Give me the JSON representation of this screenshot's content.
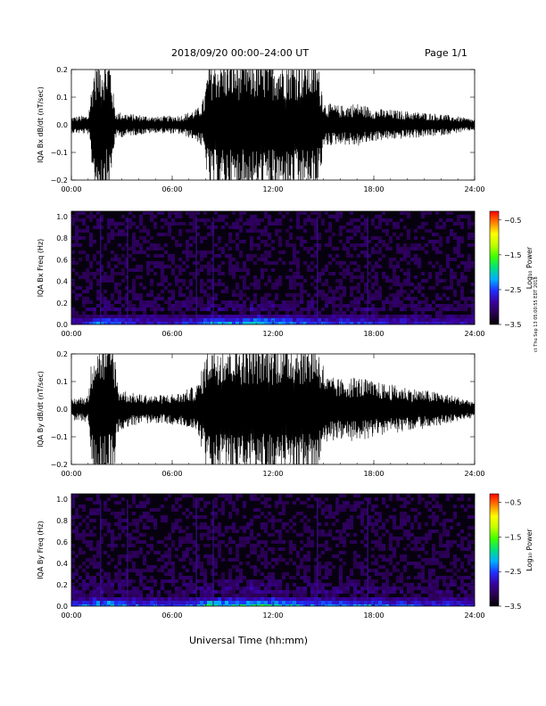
{
  "header": {
    "title": "2018/09/20  00:00–24:00 UT",
    "page": "Page 1/1"
  },
  "footer": {
    "xlabel": "Universal Time (hh:mm)"
  },
  "stamp": "ct Thu Sep 13 05:00:55 EDT 2018",
  "colors": {
    "background": "#ffffff",
    "trace": "#000000",
    "colormap": [
      "#000000",
      "#2a0050",
      "#3a00a0",
      "#2030ff",
      "#00b0ff",
      "#00e080",
      "#40ff00",
      "#c0ff00",
      "#ffff00",
      "#ff8000",
      "#ff0000"
    ]
  },
  "chart_data": [
    {
      "type": "line",
      "ylabel": "IQA Bx dB/dt (nT/sec)",
      "xticks": [
        "00:00",
        "06:00",
        "12:00",
        "18:00",
        "24:00"
      ],
      "yticks": [
        "−0.2",
        "−0.1",
        "0.0",
        "0.1",
        "0.2"
      ],
      "ylim": [
        -0.2,
        0.2
      ],
      "xlim_hours": [
        0,
        24
      ],
      "grid": false,
      "envelope": {
        "x_hours": [
          0,
          1,
          1.4,
          2.3,
          2.6,
          3.5,
          5,
          6.5,
          7.5,
          7.9,
          8.2,
          10,
          10.5,
          12.3,
          12.6,
          14.6,
          15.1,
          16,
          17,
          18,
          20,
          22,
          24
        ],
        "amplitude": [
          0.03,
          0.035,
          0.25,
          0.25,
          0.05,
          0.04,
          0.03,
          0.035,
          0.06,
          0.1,
          0.25,
          0.25,
          0.25,
          0.25,
          0.25,
          0.25,
          0.08,
          0.07,
          0.08,
          0.06,
          0.05,
          0.04,
          0.02
        ]
      }
    },
    {
      "type": "heatmap",
      "ylabel": "IQA Bx Freq (Hz)",
      "xticks": [
        "00:00",
        "06:00",
        "12:00",
        "18:00",
        "24:00"
      ],
      "yticks": [
        "0.0",
        "0.2",
        "0.4",
        "0.6",
        "0.8",
        "1.0"
      ],
      "ylim": [
        0,
        1.05
      ],
      "xlim_hours": [
        0,
        24
      ],
      "colorbar": {
        "label": "Log₁₀ Power",
        "ticks": [
          "−0.5",
          "−1.5",
          "−2.5",
          "−3.5"
        ],
        "range": [
          -3.5,
          -0.25
        ]
      },
      "low_freq_activity": {
        "x_hours": [
          0,
          1,
          1.5,
          2.5,
          3.5,
          6,
          7.5,
          8.2,
          9,
          10,
          11,
          12,
          13,
          14.5,
          15.5,
          17.5,
          19,
          22,
          24
        ],
        "level": [
          0.25,
          0.3,
          0.5,
          0.45,
          0.3,
          0.25,
          0.4,
          0.65,
          0.5,
          0.5,
          0.65,
          0.55,
          0.45,
          0.4,
          0.35,
          0.4,
          0.3,
          0.25,
          0.2
        ]
      },
      "vertical_features_hours": [
        1.7,
        3.3,
        7.4,
        8.4,
        14.6,
        17.6
      ]
    },
    {
      "type": "line",
      "ylabel": "IQA By dB/dt (nT/sec)",
      "xticks": [
        "00:00",
        "06:00",
        "12:00",
        "18:00",
        "24:00"
      ],
      "yticks": [
        "−0.2",
        "−0.1",
        "0.0",
        "0.1",
        "0.2"
      ],
      "ylim": [
        -0.2,
        0.2
      ],
      "xlim_hours": [
        0,
        24
      ],
      "grid": false,
      "envelope": {
        "x_hours": [
          0,
          1,
          1.3,
          2.5,
          2.8,
          3.5,
          5,
          6.5,
          7.5,
          7.8,
          8.2,
          10,
          10.5,
          12.3,
          12.6,
          14.6,
          15.2,
          16,
          17,
          18,
          20,
          22,
          24
        ],
        "amplitude": [
          0.04,
          0.05,
          0.25,
          0.25,
          0.08,
          0.06,
          0.05,
          0.06,
          0.09,
          0.15,
          0.25,
          0.25,
          0.25,
          0.25,
          0.25,
          0.25,
          0.12,
          0.11,
          0.12,
          0.1,
          0.08,
          0.06,
          0.03
        ]
      }
    },
    {
      "type": "heatmap",
      "ylabel": "IQA By Freq (Hz)",
      "xticks": [
        "00:00",
        "06:00",
        "12:00",
        "18:00",
        "24:00"
      ],
      "yticks": [
        "0.0",
        "0.2",
        "0.4",
        "0.6",
        "0.8",
        "1.0"
      ],
      "ylim": [
        0,
        1.05
      ],
      "xlim_hours": [
        0,
        24
      ],
      "colorbar": {
        "label": "Log₁₀ Power",
        "ticks": [
          "−0.5",
          "−1.5",
          "−2.5",
          "−3.5"
        ],
        "range": [
          -3.5,
          -0.25
        ]
      },
      "low_freq_activity": {
        "x_hours": [
          0,
          1,
          1.5,
          2.5,
          3.5,
          6,
          7.5,
          8.2,
          9,
          10,
          11,
          12,
          13,
          14.5,
          15.5,
          17.5,
          19,
          22,
          24
        ],
        "level": [
          0.35,
          0.45,
          0.6,
          0.55,
          0.4,
          0.35,
          0.5,
          0.75,
          0.6,
          0.6,
          0.75,
          0.65,
          0.55,
          0.5,
          0.45,
          0.5,
          0.4,
          0.35,
          0.3
        ]
      },
      "vertical_features_hours": [
        1.7,
        3.3,
        7.4,
        8.4,
        14.6,
        17.6
      ]
    }
  ]
}
